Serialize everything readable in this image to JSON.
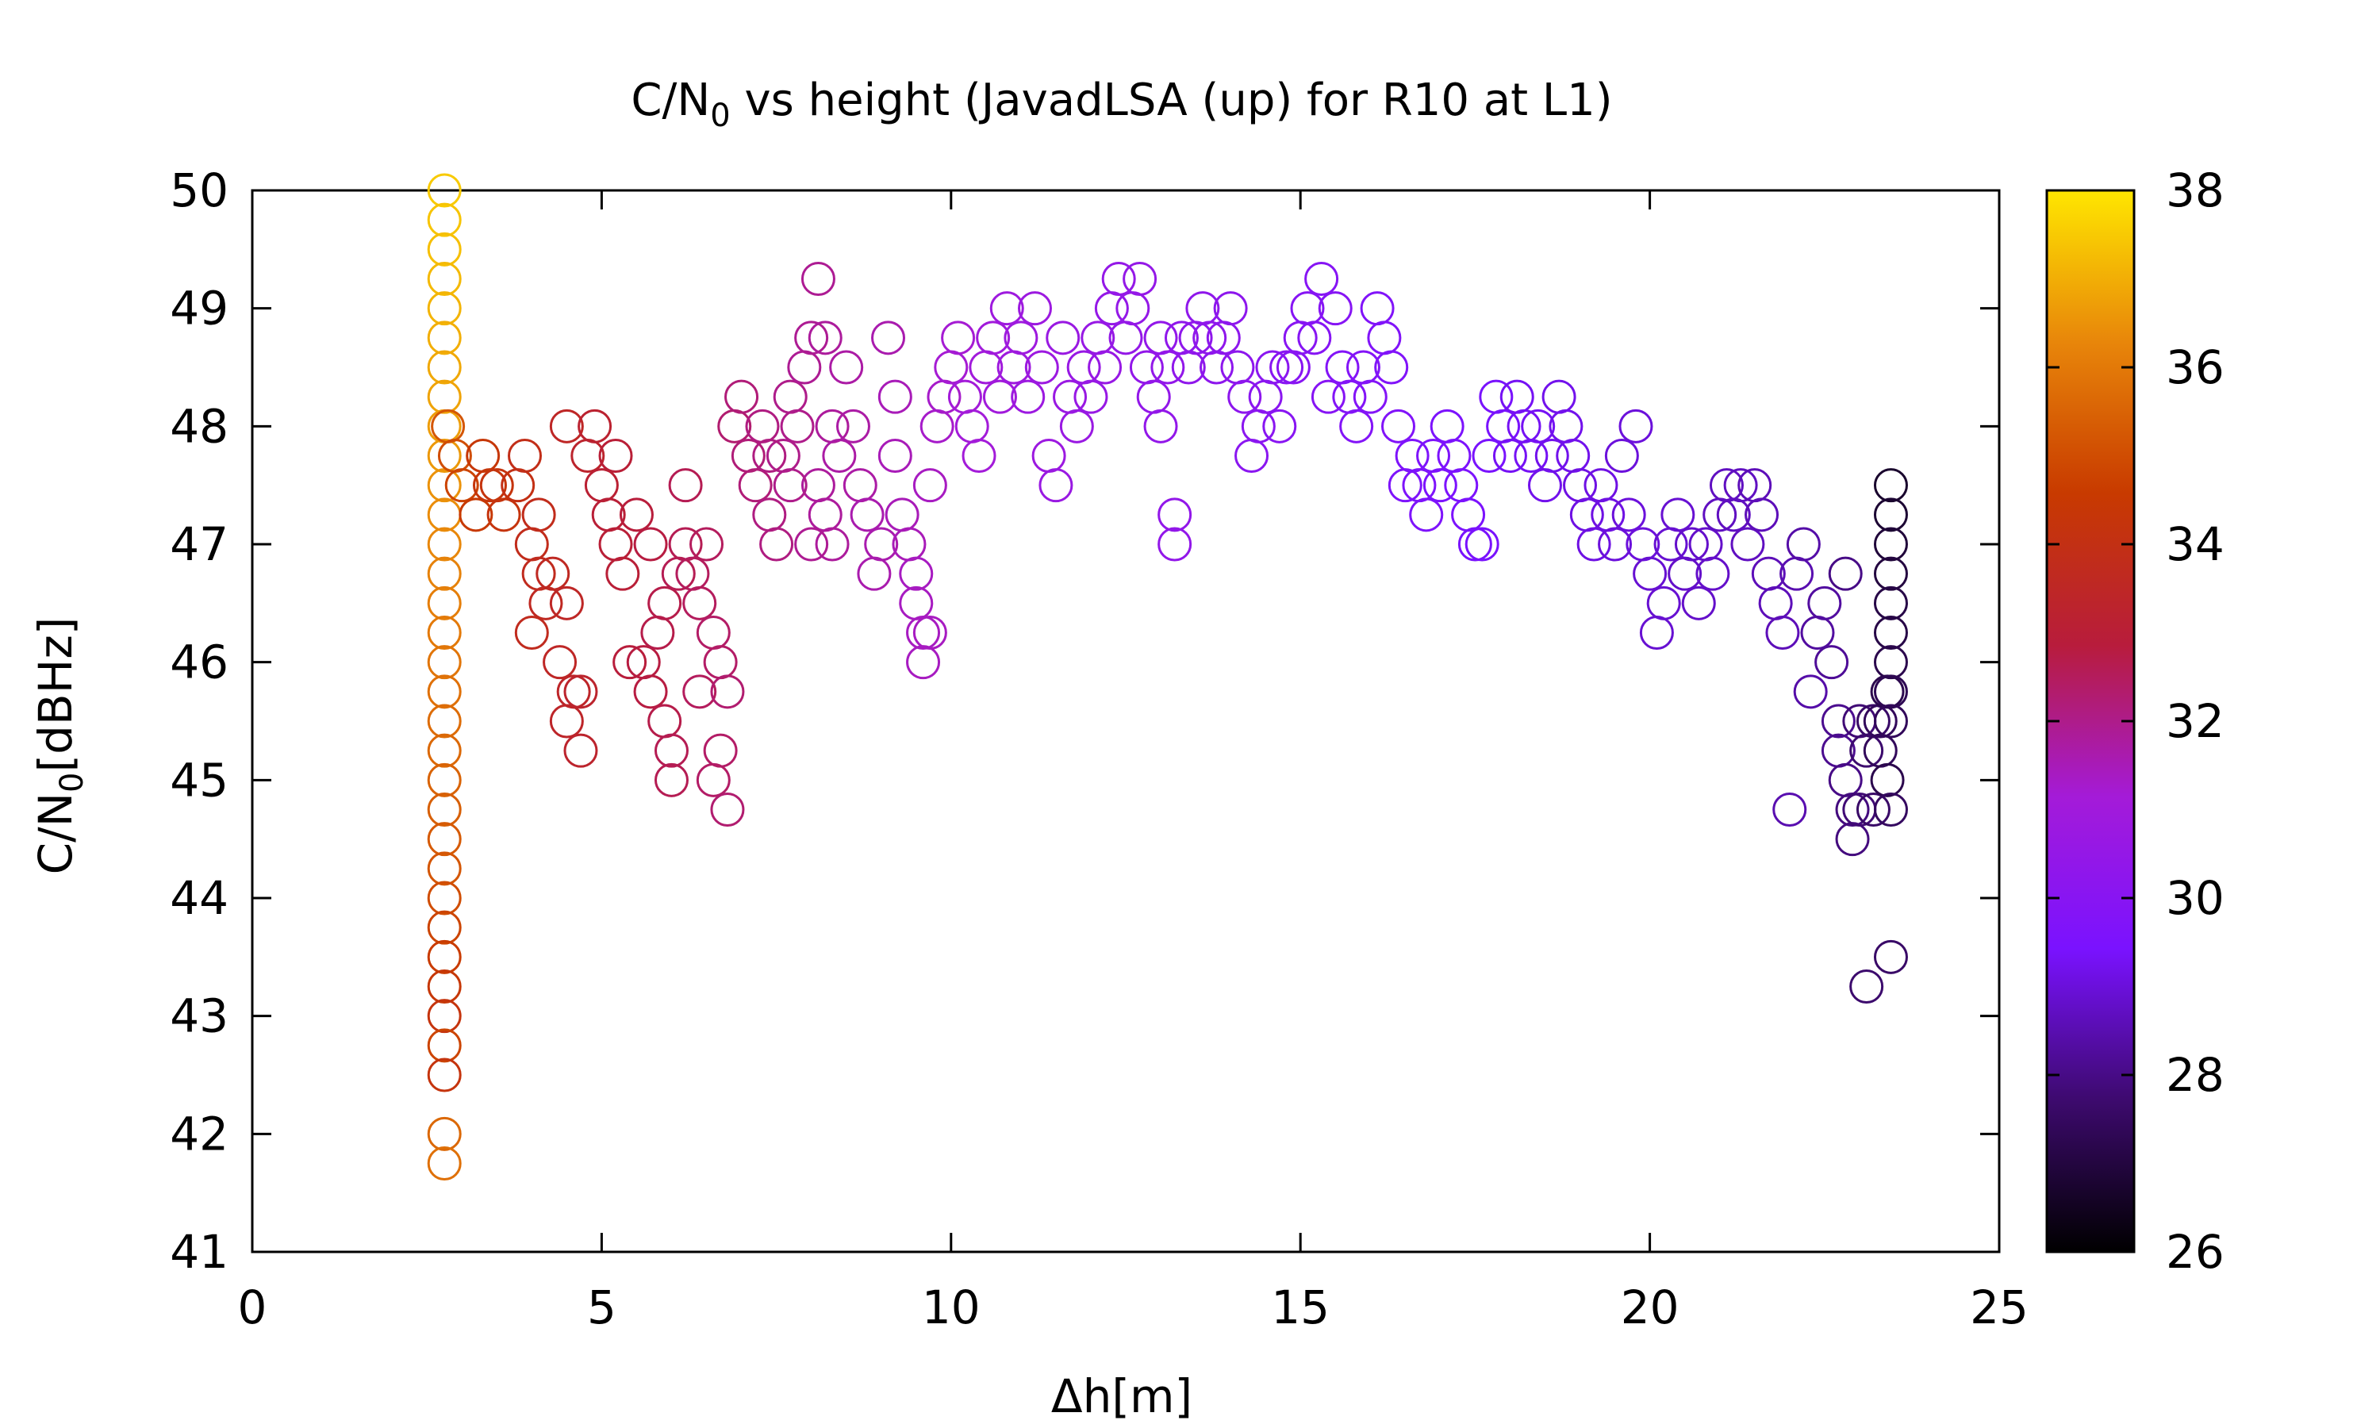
{
  "chart_data": {
    "type": "scatter",
    "title": "C/N0 vs height (JavadLSA (up) for R10 at L1)",
    "title_parts": {
      "main": "C/N",
      "sub": "0",
      "rest": " vs height (JavadLSA (up) for R10 at L1)"
    },
    "xlabel": "Δh[m]",
    "ylabel": "C/N0[dBHz]",
    "ylabel_parts": {
      "main": "C/N",
      "sub": "0",
      "rest": "[dBHz]"
    },
    "xlim": [
      0,
      25
    ],
    "ylim": [
      41,
      50
    ],
    "xticks": [
      "0",
      "5",
      "10",
      "15",
      "20",
      "25"
    ],
    "yticks": [
      "41",
      "42",
      "43",
      "44",
      "45",
      "46",
      "47",
      "48",
      "49",
      "50"
    ],
    "colorbar": {
      "range": [
        26,
        38
      ],
      "ticks": [
        "26",
        "28",
        "30",
        "32",
        "34",
        "36",
        "38"
      ]
    },
    "marker": "open-circle",
    "grid": false,
    "colormap_stops": [
      "#000000",
      "#3d0a6e",
      "#7a12ff",
      "#a41bd8",
      "#b81c3c",
      "#c83a00",
      "#e8860a",
      "#ffe600"
    ],
    "point_columns": [
      "x",
      "y",
      "color"
    ],
    "points": [
      [
        2.75,
        50.0,
        37.5
      ],
      [
        2.75,
        49.75,
        37.4
      ],
      [
        2.75,
        49.5,
        37.3
      ],
      [
        2.75,
        49.25,
        37.2
      ],
      [
        2.75,
        49.0,
        37.1
      ],
      [
        2.75,
        48.75,
        37.0
      ],
      [
        2.75,
        48.5,
        36.9
      ],
      [
        2.75,
        48.25,
        36.8
      ],
      [
        2.75,
        48.0,
        36.7
      ],
      [
        2.75,
        47.75,
        36.6
      ],
      [
        2.75,
        47.5,
        36.5
      ],
      [
        2.75,
        47.25,
        36.4
      ],
      [
        2.75,
        47.0,
        36.3
      ],
      [
        2.75,
        46.75,
        36.2
      ],
      [
        2.75,
        46.5,
        36.1
      ],
      [
        2.75,
        46.25,
        36.0
      ],
      [
        2.75,
        46.0,
        35.9
      ],
      [
        2.75,
        45.75,
        35.8
      ],
      [
        2.75,
        45.5,
        35.7
      ],
      [
        2.75,
        45.25,
        35.6
      ],
      [
        2.75,
        45.0,
        35.5
      ],
      [
        2.75,
        44.75,
        35.4
      ],
      [
        2.75,
        44.5,
        35.3
      ],
      [
        2.75,
        44.25,
        35.2
      ],
      [
        2.75,
        44.0,
        35.0
      ],
      [
        2.75,
        43.75,
        34.8
      ],
      [
        2.75,
        43.5,
        34.6
      ],
      [
        2.75,
        43.25,
        34.4
      ],
      [
        2.75,
        43.0,
        34.2
      ],
      [
        2.75,
        42.75,
        34.8
      ],
      [
        2.75,
        42.5,
        34.2
      ],
      [
        2.75,
        42.0,
        35.6
      ],
      [
        2.75,
        41.75,
        35.8
      ],
      [
        2.8,
        48.0,
        35.2
      ],
      [
        2.9,
        47.75,
        35.0
      ],
      [
        3.0,
        47.5,
        34.8
      ],
      [
        3.2,
        47.25,
        34.5
      ],
      [
        3.4,
        47.5,
        34.3
      ],
      [
        3.6,
        47.25,
        34.2
      ],
      [
        3.8,
        47.5,
        34.0
      ],
      [
        3.3,
        47.75,
        34.4
      ],
      [
        3.5,
        47.5,
        34.2
      ],
      [
        3.9,
        47.75,
        33.9
      ],
      [
        4.1,
        47.25,
        33.8
      ],
      [
        4.0,
        47.0,
        33.8
      ],
      [
        4.1,
        46.75,
        33.7
      ],
      [
        4.2,
        46.5,
        33.6
      ],
      [
        4.0,
        46.25,
        33.7
      ],
      [
        4.3,
        46.75,
        33.6
      ],
      [
        4.5,
        46.5,
        33.5
      ],
      [
        4.4,
        46.0,
        33.5
      ],
      [
        4.6,
        45.75,
        33.4
      ],
      [
        4.5,
        45.5,
        33.4
      ],
      [
        4.7,
        45.25,
        33.3
      ],
      [
        4.7,
        45.75,
        33.3
      ],
      [
        4.5,
        48.0,
        33.5
      ],
      [
        4.8,
        47.75,
        33.3
      ],
      [
        4.9,
        48.0,
        33.2
      ],
      [
        5.0,
        47.5,
        33.1
      ],
      [
        5.1,
        47.25,
        33.0
      ],
      [
        5.2,
        47.0,
        33.0
      ],
      [
        5.3,
        46.75,
        33.0
      ],
      [
        5.4,
        46.0,
        32.9
      ],
      [
        5.6,
        46.0,
        32.8
      ],
      [
        5.7,
        45.75,
        32.8
      ],
      [
        5.8,
        46.25,
        32.7
      ],
      [
        5.9,
        45.5,
        32.7
      ],
      [
        6.0,
        45.25,
        32.6
      ],
      [
        6.0,
        45.0,
        32.6
      ],
      [
        5.9,
        46.5,
        32.7
      ],
      [
        6.1,
        46.75,
        32.6
      ],
      [
        6.2,
        47.0,
        32.6
      ],
      [
        6.3,
        46.75,
        32.5
      ],
      [
        6.5,
        47.0,
        32.5
      ],
      [
        6.2,
        47.5,
        32.6
      ],
      [
        6.4,
        46.5,
        32.5
      ],
      [
        6.6,
        46.25,
        32.4
      ],
      [
        6.7,
        46.0,
        32.4
      ],
      [
        6.4,
        45.75,
        32.5
      ],
      [
        6.6,
        45.0,
        32.4
      ],
      [
        6.7,
        45.25,
        32.4
      ],
      [
        6.8,
        44.75,
        32.3
      ],
      [
        6.8,
        45.75,
        32.3
      ],
      [
        5.5,
        47.25,
        32.9
      ],
      [
        5.7,
        47.0,
        32.8
      ],
      [
        5.2,
        47.75,
        33.0
      ],
      [
        6.9,
        48.0,
        32.3
      ],
      [
        7.0,
        48.25,
        32.2
      ],
      [
        7.1,
        47.75,
        32.2
      ],
      [
        7.2,
        47.5,
        32.2
      ],
      [
        7.3,
        48.0,
        32.1
      ],
      [
        7.4,
        47.25,
        32.1
      ],
      [
        7.5,
        47.0,
        32.1
      ],
      [
        7.6,
        47.75,
        32.0
      ],
      [
        7.7,
        48.25,
        32.0
      ],
      [
        7.8,
        48.0,
        32.0
      ],
      [
        7.9,
        48.5,
        31.9
      ],
      [
        8.0,
        48.75,
        31.9
      ],
      [
        8.1,
        49.25,
        31.9
      ],
      [
        8.2,
        48.75,
        31.8
      ],
      [
        8.3,
        48.0,
        31.8
      ],
      [
        8.1,
        47.5,
        31.8
      ],
      [
        8.2,
        47.25,
        31.8
      ],
      [
        8.3,
        47.0,
        31.8
      ],
      [
        8.4,
        47.75,
        31.7
      ],
      [
        8.5,
        48.5,
        31.7
      ],
      [
        8.6,
        48.0,
        31.7
      ],
      [
        8.7,
        47.5,
        31.7
      ],
      [
        8.8,
        47.25,
        31.6
      ],
      [
        8.9,
        46.75,
        31.6
      ],
      [
        9.0,
        47.0,
        31.6
      ],
      [
        9.1,
        48.75,
        31.6
      ],
      [
        9.2,
        48.25,
        31.5
      ],
      [
        9.2,
        47.75,
        31.5
      ],
      [
        9.3,
        47.25,
        31.5
      ],
      [
        9.4,
        47.0,
        31.5
      ],
      [
        9.5,
        46.75,
        31.4
      ],
      [
        9.5,
        46.5,
        31.4
      ],
      [
        9.6,
        46.25,
        31.4
      ],
      [
        9.6,
        46.0,
        31.4
      ],
      [
        9.7,
        46.25,
        31.4
      ],
      [
        9.7,
        47.5,
        31.4
      ],
      [
        7.4,
        47.75,
        32.1
      ],
      [
        7.7,
        47.5,
        32.0
      ],
      [
        8.0,
        47.0,
        31.9
      ],
      [
        9.8,
        48.0,
        31.3
      ],
      [
        9.9,
        48.25,
        31.3
      ],
      [
        10.0,
        48.5,
        31.2
      ],
      [
        10.1,
        48.75,
        31.2
      ],
      [
        10.2,
        48.25,
        31.1
      ],
      [
        10.3,
        48.0,
        31.1
      ],
      [
        10.4,
        47.75,
        31.1
      ],
      [
        10.5,
        48.5,
        31.0
      ],
      [
        10.6,
        48.75,
        31.0
      ],
      [
        10.7,
        48.25,
        31.0
      ],
      [
        10.8,
        49.0,
        30.9
      ],
      [
        10.9,
        48.5,
        30.9
      ],
      [
        11.0,
        48.75,
        30.9
      ],
      [
        11.1,
        48.25,
        30.8
      ],
      [
        11.2,
        49.0,
        30.8
      ],
      [
        11.3,
        48.5,
        30.8
      ],
      [
        11.4,
        47.75,
        30.8
      ],
      [
        11.5,
        47.5,
        30.7
      ],
      [
        11.6,
        48.75,
        30.7
      ],
      [
        11.7,
        48.25,
        30.7
      ],
      [
        11.8,
        48.0,
        30.7
      ],
      [
        11.9,
        48.5,
        30.6
      ],
      [
        12.0,
        48.25,
        30.6
      ],
      [
        12.1,
        48.75,
        30.6
      ],
      [
        12.2,
        48.5,
        30.6
      ],
      [
        12.3,
        49.0,
        30.5
      ],
      [
        12.4,
        49.25,
        30.5
      ],
      [
        12.5,
        48.75,
        30.5
      ],
      [
        12.6,
        49.0,
        30.5
      ],
      [
        12.7,
        49.25,
        30.5
      ],
      [
        12.8,
        48.5,
        30.4
      ],
      [
        12.9,
        48.25,
        30.4
      ],
      [
        13.0,
        48.0,
        30.4
      ],
      [
        13.0,
        48.75,
        30.4
      ],
      [
        13.1,
        48.5,
        30.4
      ],
      [
        13.2,
        47.25,
        30.4
      ],
      [
        13.2,
        47.0,
        30.4
      ],
      [
        13.3,
        48.75,
        30.3
      ],
      [
        13.4,
        48.5,
        30.3
      ],
      [
        13.5,
        48.75,
        30.3
      ],
      [
        13.6,
        49.0,
        30.3
      ],
      [
        13.7,
        48.75,
        30.3
      ],
      [
        13.8,
        48.5,
        30.2
      ],
      [
        13.9,
        48.75,
        30.2
      ],
      [
        14.0,
        49.0,
        30.2
      ],
      [
        14.1,
        48.5,
        30.2
      ],
      [
        14.2,
        48.25,
        30.2
      ],
      [
        14.3,
        47.75,
        30.1
      ],
      [
        14.4,
        48.0,
        30.1
      ],
      [
        14.5,
        48.25,
        30.1
      ],
      [
        14.6,
        48.5,
        30.1
      ],
      [
        14.7,
        48.0,
        30.0
      ],
      [
        14.8,
        48.5,
        30.0
      ],
      [
        14.9,
        48.5,
        30.0
      ],
      [
        15.0,
        48.75,
        30.0
      ],
      [
        15.1,
        49.0,
        29.9
      ],
      [
        15.2,
        48.75,
        29.9
      ],
      [
        15.3,
        49.25,
        29.9
      ],
      [
        15.4,
        48.25,
        29.9
      ],
      [
        15.5,
        49.0,
        29.9
      ],
      [
        15.6,
        48.5,
        29.8
      ],
      [
        15.7,
        48.25,
        29.8
      ],
      [
        15.8,
        48.0,
        29.8
      ],
      [
        15.9,
        48.5,
        29.8
      ],
      [
        16.0,
        48.25,
        29.8
      ],
      [
        16.1,
        49.0,
        29.7
      ],
      [
        16.2,
        48.75,
        29.7
      ],
      [
        16.3,
        48.5,
        29.7
      ],
      [
        16.4,
        48.0,
        29.7
      ],
      [
        16.5,
        47.5,
        29.6
      ],
      [
        16.6,
        47.75,
        29.6
      ],
      [
        16.7,
        47.5,
        29.6
      ],
      [
        16.8,
        47.25,
        29.6
      ],
      [
        16.9,
        47.75,
        29.6
      ],
      [
        17.0,
        47.5,
        29.5
      ],
      [
        17.1,
        48.0,
        29.5
      ],
      [
        17.2,
        47.75,
        29.5
      ],
      [
        17.3,
        47.5,
        29.5
      ],
      [
        17.4,
        47.25,
        29.5
      ],
      [
        17.5,
        47.0,
        29.4
      ],
      [
        17.6,
        47.0,
        29.4
      ],
      [
        17.7,
        47.75,
        29.4
      ],
      [
        17.8,
        48.25,
        29.4
      ],
      [
        17.9,
        48.0,
        29.4
      ],
      [
        18.0,
        47.75,
        29.3
      ],
      [
        18.1,
        48.25,
        29.3
      ],
      [
        18.2,
        48.0,
        29.3
      ],
      [
        18.3,
        47.75,
        29.3
      ],
      [
        18.4,
        48.0,
        29.3
      ],
      [
        18.5,
        47.5,
        29.2
      ],
      [
        18.6,
        47.75,
        29.2
      ],
      [
        18.7,
        48.25,
        29.2
      ],
      [
        18.8,
        48.0,
        29.2
      ],
      [
        18.9,
        47.75,
        29.2
      ],
      [
        19.0,
        47.5,
        29.1
      ],
      [
        19.1,
        47.25,
        29.1
      ],
      [
        19.2,
        47.0,
        29.1
      ],
      [
        19.3,
        47.5,
        29.1
      ],
      [
        19.4,
        47.25,
        29.1
      ],
      [
        19.5,
        47.0,
        29.0
      ],
      [
        19.6,
        47.75,
        29.0
      ],
      [
        19.7,
        47.25,
        29.0
      ],
      [
        19.8,
        48.0,
        29.0
      ],
      [
        19.9,
        47.0,
        29.0
      ],
      [
        20.0,
        46.75,
        28.9
      ],
      [
        20.1,
        46.25,
        28.9
      ],
      [
        20.2,
        46.5,
        28.9
      ],
      [
        20.3,
        47.0,
        28.9
      ],
      [
        20.4,
        47.25,
        28.9
      ],
      [
        20.5,
        46.75,
        28.8
      ],
      [
        20.6,
        47.0,
        28.8
      ],
      [
        20.7,
        46.5,
        28.8
      ],
      [
        20.8,
        47.0,
        28.8
      ],
      [
        20.9,
        46.75,
        28.8
      ],
      [
        21.0,
        47.25,
        28.7
      ],
      [
        21.1,
        47.5,
        28.7
      ],
      [
        21.2,
        47.25,
        28.7
      ],
      [
        21.3,
        47.5,
        28.7
      ],
      [
        21.4,
        47.0,
        28.7
      ],
      [
        21.5,
        47.5,
        28.6
      ],
      [
        21.6,
        47.25,
        28.6
      ],
      [
        21.7,
        46.75,
        28.6
      ],
      [
        21.8,
        46.5,
        28.6
      ],
      [
        21.9,
        46.25,
        28.6
      ],
      [
        22.0,
        44.75,
        28.5
      ],
      [
        22.1,
        46.75,
        28.5
      ],
      [
        22.2,
        47.0,
        28.4
      ],
      [
        22.3,
        45.75,
        28.4
      ],
      [
        22.4,
        46.25,
        28.3
      ],
      [
        22.5,
        46.5,
        28.3
      ],
      [
        22.6,
        46.0,
        28.2
      ],
      [
        22.7,
        45.5,
        28.1
      ],
      [
        22.7,
        45.25,
        28.1
      ],
      [
        22.8,
        46.75,
        28.0
      ],
      [
        22.8,
        45.0,
        28.0
      ],
      [
        22.9,
        44.75,
        27.9
      ],
      [
        22.9,
        44.5,
        27.9
      ],
      [
        23.0,
        45.5,
        27.8
      ],
      [
        23.0,
        44.75,
        27.8
      ],
      [
        23.1,
        45.25,
        27.7
      ],
      [
        23.1,
        43.25,
        27.7
      ],
      [
        23.2,
        45.5,
        27.6
      ],
      [
        23.2,
        44.75,
        27.6
      ],
      [
        23.3,
        45.25,
        27.4
      ],
      [
        23.3,
        45.5,
        27.4
      ],
      [
        23.4,
        45.75,
        27.2
      ],
      [
        23.4,
        45.0,
        27.2
      ],
      [
        23.45,
        47.5,
        26.7
      ],
      [
        23.45,
        47.25,
        26.8
      ],
      [
        23.45,
        47.0,
        26.9
      ],
      [
        23.45,
        46.75,
        27.0
      ],
      [
        23.45,
        46.5,
        27.1
      ],
      [
        23.45,
        46.25,
        27.1
      ],
      [
        23.45,
        46.0,
        27.2
      ],
      [
        23.45,
        45.75,
        27.3
      ],
      [
        23.45,
        45.5,
        27.4
      ],
      [
        23.45,
        44.75,
        27.5
      ],
      [
        23.45,
        43.5,
        27.6
      ]
    ]
  }
}
